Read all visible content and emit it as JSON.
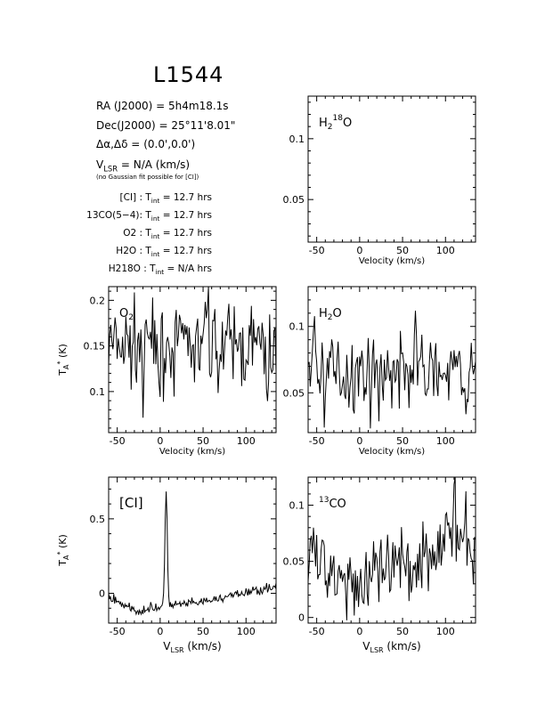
{
  "header": {
    "title": "L1544",
    "ra_label": "RA (J2000) =",
    "ra_value": "5h4m18.1s",
    "dec_label": "Dec(J2000) =",
    "dec_value": "25°11'8.01\"",
    "offset_label": "Δα,Δδ =",
    "offset_value": "(0.0',0.0')",
    "vlsr_label": "V",
    "vlsr_sub": "LSR",
    "vlsr_value": "= N/A  (km/s)",
    "note": "(no Gaussian fit possible for [CI])",
    "integration_times": [
      {
        "line": "[CI] :",
        "tint": "= 12.7 hrs"
      },
      {
        "line": "13CO(5−4):",
        "tint": "= 12.7 hrs"
      },
      {
        "line": "O2 :",
        "tint": "= 12.7 hrs"
      },
      {
        "line": "H2O :",
        "tint": "= 12.7 hrs"
      },
      {
        "line": "H218O :",
        "tint": "= N/A hrs"
      }
    ],
    "tint_label": "T",
    "tint_sub": "int"
  },
  "axis_text": {
    "velocity": "Velocity (km/s)",
    "vlsr": "V",
    "vlsr_sub": "LSR",
    "vlsr_unit": "(km/s)",
    "ta": "T",
    "ta_sub": "A",
    "ta_sup": "*",
    "ta_unit": "(K)"
  },
  "chart_data": [
    {
      "type": "line",
      "id": "h218o",
      "label": "H2 18O",
      "xlabel": "Velocity (km/s)",
      "ylabel": "",
      "xlim": [
        -60,
        135
      ],
      "ylim": [
        0.015,
        0.135
      ],
      "xticks": [
        -50,
        0,
        50,
        100
      ],
      "yticks": [
        0.05,
        0.1
      ],
      "ytick_labels": [
        "0.05",
        "0.1"
      ],
      "series": []
    },
    {
      "type": "line",
      "id": "o2",
      "label": "O2",
      "xlabel": "Velocity (km/s)",
      "ylabel": "T_A* (K)",
      "xlim": [
        -60,
        135
      ],
      "ylim": [
        0.055,
        0.215
      ],
      "xticks": [
        -50,
        0,
        50,
        100
      ],
      "yticks": [
        0.1,
        0.15,
        0.2
      ],
      "ytick_labels": [
        "0.1",
        "0.15",
        "0.2"
      ],
      "series": [
        {
          "mean": 0.15,
          "noise": 0.022,
          "features": [
            [
              55,
              0.07
            ],
            [
              0,
              -0.06
            ],
            [
              -20,
              -0.05
            ],
            [
              125,
              -0.06
            ]
          ]
        }
      ]
    },
    {
      "type": "line",
      "id": "h2o",
      "label": "H2O",
      "xlabel": "Velocity (km/s)",
      "ylabel": "",
      "xlim": [
        -60,
        135
      ],
      "ylim": [
        0.02,
        0.13
      ],
      "xticks": [
        -50,
        0,
        50,
        100
      ],
      "yticks": [
        0.05,
        0.1
      ],
      "ytick_labels": [
        "0.05",
        "0.1"
      ],
      "series": [
        {
          "mean": 0.065,
          "noise": 0.014,
          "features": [
            [
              -52,
              0.045
            ],
            [
              65,
              0.04
            ],
            [
              125,
              -0.035
            ]
          ]
        }
      ]
    },
    {
      "type": "line",
      "id": "ci",
      "label": "[CI]",
      "xlabel": "V_LSR (km/s)",
      "ylabel": "T_A* (K)",
      "xlim": [
        -60,
        135
      ],
      "ylim": [
        -0.2,
        0.78
      ],
      "xticks": [
        -50,
        0,
        50,
        100
      ],
      "yticks": [
        0,
        0.5
      ],
      "ytick_labels": [
        "0",
        "0.5"
      ],
      "series": [
        {
          "baseline": [
            [
              -60,
              -0.02
            ],
            [
              -30,
              -0.12
            ],
            [
              0,
              -0.09
            ],
            [
              50,
              -0.06
            ],
            [
              135,
              0.05
            ]
          ],
          "noise": 0.015,
          "peak_v": 7,
          "peak_t": 0.75
        }
      ]
    },
    {
      "type": "line",
      "id": "13co",
      "label": "13CO",
      "xlabel": "V_LSR (km/s)",
      "ylabel": "",
      "xlim": [
        -60,
        135
      ],
      "ylim": [
        -0.005,
        0.125
      ],
      "xticks": [
        -50,
        0,
        50,
        100
      ],
      "yticks": [
        0,
        0.05,
        0.1
      ],
      "ytick_labels": [
        "0",
        "0.05",
        "0.1"
      ],
      "series": [
        {
          "baseline": [
            [
              -60,
              0.055
            ],
            [
              0,
              0.03
            ],
            [
              60,
              0.045
            ],
            [
              100,
              0.075
            ],
            [
              135,
              0.06
            ]
          ],
          "noise": 0.017,
          "features": [
            [
              110,
              0.04
            ]
          ]
        }
      ]
    }
  ]
}
